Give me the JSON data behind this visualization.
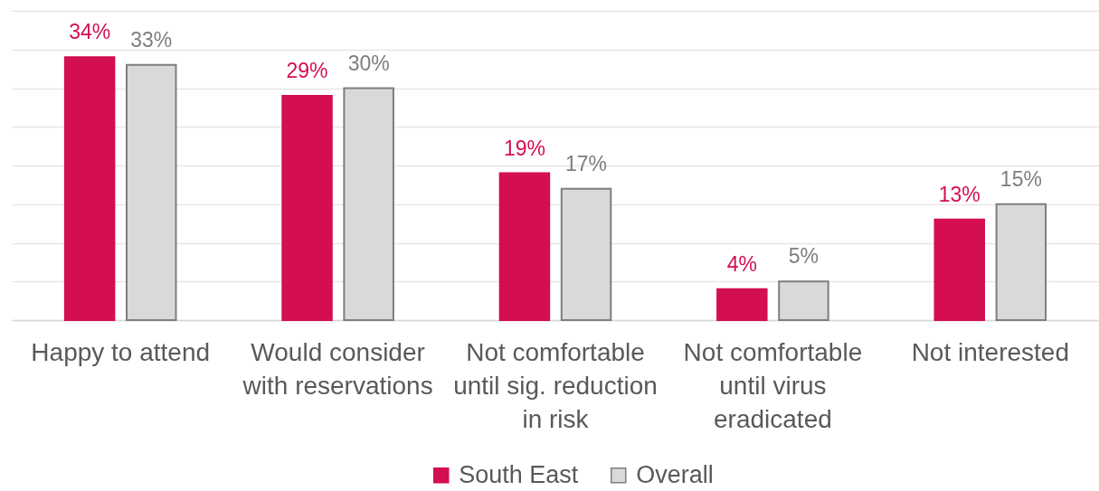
{
  "chart_data": {
    "type": "bar",
    "categories": [
      "Happy to attend",
      "Would consider\nwith reservations",
      "Not comfortable\nuntil sig. reduction\nin risk",
      "Not comfortable\nuntil virus\neradicated",
      "Not interested"
    ],
    "series": [
      {
        "name": "South East",
        "color": "#d40e52",
        "values": [
          34,
          29,
          19,
          4,
          13
        ],
        "value_labels": [
          "34%",
          "29%",
          "19%",
          "4%",
          "13%"
        ]
      },
      {
        "name": "Overall",
        "color": "#d9d9d9",
        "values": [
          33,
          30,
          17,
          5,
          15
        ],
        "value_labels": [
          "33%",
          "30%",
          "17%",
          "5%",
          "15%"
        ]
      }
    ],
    "ylim": [
      0,
      40
    ],
    "yticks": [
      {
        "value": 0,
        "label": null
      },
      {
        "value": 5,
        "label": null
      },
      {
        "value": 10,
        "label": null
      },
      {
        "value": 15,
        "label": null
      },
      {
        "value": 20,
        "label": null
      },
      {
        "value": 25,
        "label": null
      },
      {
        "value": 30,
        "label": null
      },
      {
        "value": 35,
        "label": null
      },
      {
        "value": 40,
        "label": null
      }
    ],
    "tick_labels": "x",
    "grid": "y",
    "legend": "bottom"
  }
}
